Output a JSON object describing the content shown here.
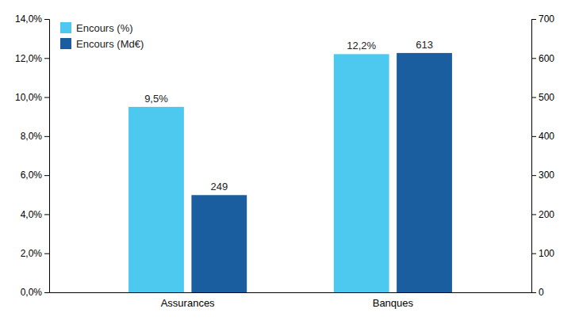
{
  "chart_data": {
    "type": "bar",
    "categories": [
      "Assurances",
      "Banques"
    ],
    "series": [
      {
        "name": "Encours (%)",
        "color": "#4DC8EE",
        "values": [
          9.5,
          12.2
        ],
        "value_labels": [
          "9,5%",
          "12,2%"
        ]
      },
      {
        "name": "Encours (Md€)",
        "color": "#1B5EA0",
        "values": [
          249,
          613
        ],
        "axis": "y2"
      }
    ],
    "ylim": [
      0,
      14
    ],
    "yticks": [
      {
        "value": 0,
        "label": "0,0%"
      },
      {
        "value": 2,
        "label": "2,0%"
      },
      {
        "value": 4,
        "label": "4,0%"
      },
      {
        "value": 6,
        "label": "6,0%"
      },
      {
        "value": 8,
        "label": "8,0%"
      },
      {
        "value": 10,
        "label": "10,0%"
      },
      {
        "value": 12,
        "label": "12,0%"
      },
      {
        "value": 14,
        "label": "14,0%"
      }
    ],
    "y2lim": [
      0,
      700
    ],
    "y2ticks": [
      0,
      100,
      200,
      300,
      400,
      500,
      600,
      700
    ],
    "grid": false,
    "legend": "upper left",
    "data_labels": true
  }
}
